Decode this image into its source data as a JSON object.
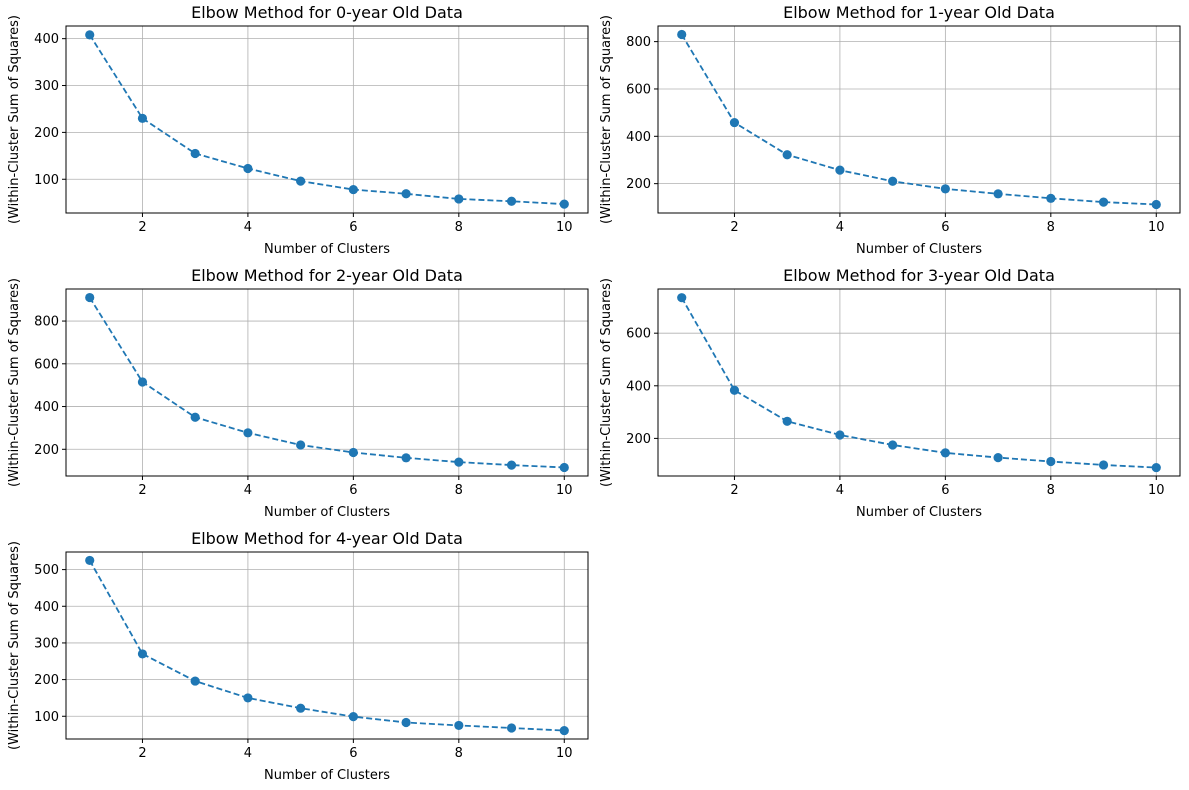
{
  "chart_data": [
    {
      "type": "line",
      "title": "Elbow Method for 0-year Old Data",
      "xlabel": "Number of Clusters",
      "ylabel": "(Within-Cluster Sum of Squares)",
      "x": [
        1,
        2,
        3,
        4,
        5,
        6,
        7,
        8,
        9,
        10
      ],
      "values": [
        408,
        230,
        155,
        123,
        96,
        78,
        69,
        58,
        53,
        47
      ],
      "xlim": [
        0.55,
        10.45
      ],
      "ylim": [
        28,
        427
      ],
      "xticks": [
        2,
        4,
        6,
        8,
        10
      ],
      "yticks": [
        100,
        200,
        300,
        400
      ],
      "grid": true,
      "marker": "circle",
      "linestyle": "dashed",
      "color": "#1f77b4"
    },
    {
      "type": "line",
      "title": "Elbow Method for 1-year Old Data",
      "xlabel": "Number of Clusters",
      "ylabel": "(Within-Cluster Sum of Squares)",
      "x": [
        1,
        2,
        3,
        4,
        5,
        6,
        7,
        8,
        9,
        10
      ],
      "values": [
        830,
        458,
        322,
        257,
        210,
        178,
        157,
        138,
        122,
        112
      ],
      "xlim": [
        0.55,
        10.45
      ],
      "ylim": [
        76,
        866
      ],
      "xticks": [
        2,
        4,
        6,
        8,
        10
      ],
      "yticks": [
        200,
        400,
        600,
        800
      ],
      "grid": true,
      "marker": "circle",
      "linestyle": "dashed",
      "color": "#1f77b4"
    },
    {
      "type": "line",
      "title": "Elbow Method for 2-year Old Data",
      "xlabel": "Number of Clusters",
      "ylabel": "(Within-Cluster Sum of Squares)",
      "x": [
        1,
        2,
        3,
        4,
        5,
        6,
        7,
        8,
        9,
        10
      ],
      "values": [
        910,
        515,
        350,
        277,
        220,
        185,
        160,
        140,
        126,
        115
      ],
      "xlim": [
        0.55,
        10.45
      ],
      "ylim": [
        75,
        950
      ],
      "xticks": [
        2,
        4,
        6,
        8,
        10
      ],
      "yticks": [
        200,
        400,
        600,
        800
      ],
      "grid": true,
      "marker": "circle",
      "linestyle": "dashed",
      "color": "#1f77b4"
    },
    {
      "type": "line",
      "title": "Elbow Method for 3-year Old Data",
      "xlabel": "Number of Clusters",
      "ylabel": "(Within-Cluster Sum of Squares)",
      "x": [
        1,
        2,
        3,
        4,
        5,
        6,
        7,
        8,
        9,
        10
      ],
      "values": [
        735,
        383,
        265,
        213,
        175,
        145,
        127,
        112,
        99,
        89
      ],
      "xlim": [
        0.55,
        10.45
      ],
      "ylim": [
        57,
        768
      ],
      "xticks": [
        2,
        4,
        6,
        8,
        10
      ],
      "yticks": [
        200,
        400,
        600
      ],
      "grid": true,
      "marker": "circle",
      "linestyle": "dashed",
      "color": "#1f77b4"
    },
    {
      "type": "line",
      "title": "Elbow Method for 4-year Old Data",
      "xlabel": "Number of Clusters",
      "ylabel": "(Within-Cluster Sum of Squares)",
      "x": [
        1,
        2,
        3,
        4,
        5,
        6,
        7,
        8,
        9,
        10
      ],
      "values": [
        525,
        270,
        196,
        150,
        122,
        99,
        83,
        75,
        68,
        61
      ],
      "xlim": [
        0.55,
        10.45
      ],
      "ylim": [
        38,
        548
      ],
      "xticks": [
        2,
        4,
        6,
        8,
        10
      ],
      "yticks": [
        100,
        200,
        300,
        400,
        500
      ],
      "grid": true,
      "marker": "circle",
      "linestyle": "dashed",
      "color": "#1f77b4"
    }
  ]
}
